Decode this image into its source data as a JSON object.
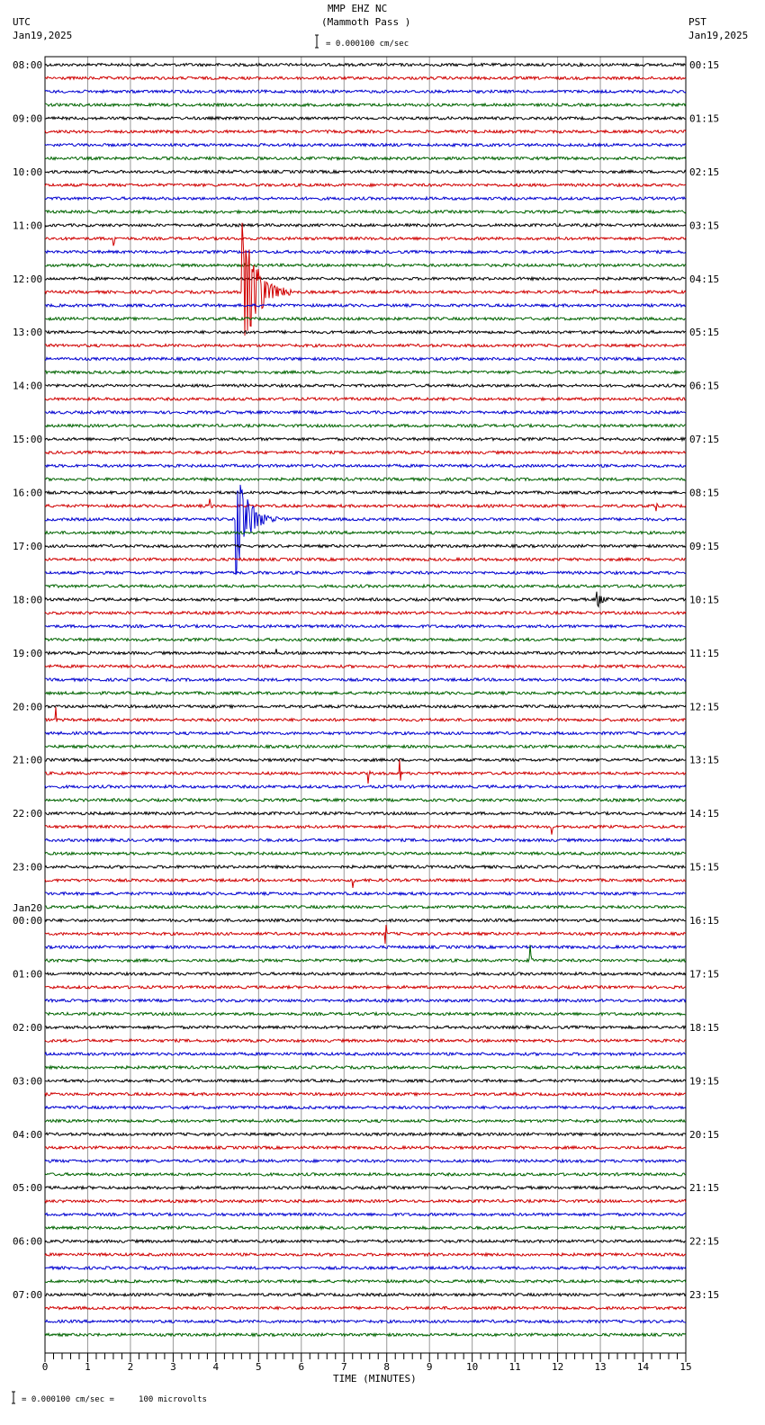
{
  "header": {
    "station": "MMP EHZ NC",
    "location": "(Mammoth Pass )",
    "left_tz": "UTC",
    "left_date": "Jan19,2025",
    "right_tz": "PST",
    "right_date": "Jan19,2025",
    "scale": "= 0.000100 cm/sec"
  },
  "footer": {
    "scale_note": "= 0.000100 cm/sec =     100 microvolts"
  },
  "chart_data": {
    "type": "line",
    "title": "MMP EHZ NC (Mammoth Pass )",
    "xlabel": "TIME (MINUTES)",
    "xlim": [
      0,
      15
    ],
    "x_ticks": [
      "0",
      "1",
      "2",
      "3",
      "4",
      "5",
      "6",
      "7",
      "8",
      "9",
      "10",
      "11",
      "12",
      "13",
      "14",
      "15"
    ],
    "traces_per_hour": 4,
    "trace_colors": [
      "#000000",
      "#d00000",
      "#0000d0",
      "#006400"
    ],
    "left_labels": [
      "08:00",
      "09:00",
      "10:00",
      "11:00",
      "12:00",
      "13:00",
      "14:00",
      "15:00",
      "16:00",
      "17:00",
      "18:00",
      "19:00",
      "20:00",
      "21:00",
      "22:00",
      "23:00",
      "00:00",
      "01:00",
      "02:00",
      "03:00",
      "04:00",
      "05:00",
      "06:00",
      "07:00"
    ],
    "left_date_change": {
      "hour_index": 16,
      "label": "Jan20"
    },
    "right_labels": [
      "00:15",
      "01:15",
      "02:15",
      "03:15",
      "04:15",
      "05:15",
      "06:15",
      "07:15",
      "08:15",
      "09:15",
      "10:15",
      "11:15",
      "12:15",
      "13:15",
      "14:15",
      "15:15",
      "16:15",
      "17:15",
      "18:15",
      "19:15",
      "20:15",
      "21:15",
      "22:15",
      "23:15"
    ],
    "events": [
      {
        "trace": 17,
        "minute": 4.6,
        "amplitude": 95,
        "duration_min": 1.2
      },
      {
        "trace": 34,
        "minute": 4.45,
        "amplitude": 70,
        "duration_min": 1.0
      },
      {
        "trace": 17,
        "minute": 12.85,
        "amplitude": 8,
        "duration_min": 0.15
      },
      {
        "trace": 40,
        "minute": 12.9,
        "amplitude": 20,
        "duration_min": 0.3
      },
      {
        "trace": 13,
        "minute": 1.6,
        "amplitude": 8,
        "duration_min": 0.1
      },
      {
        "trace": 53,
        "minute": 8.3,
        "amplitude": 30,
        "duration_min": 0.05
      },
      {
        "trace": 53,
        "minute": 7.55,
        "amplitude": 22,
        "duration_min": 0.05
      },
      {
        "trace": 57,
        "minute": 11.85,
        "amplitude": 18,
        "duration_min": 0.05
      },
      {
        "trace": 65,
        "minute": 7.95,
        "amplitude": 45,
        "duration_min": 0.05
      },
      {
        "trace": 67,
        "minute": 11.35,
        "amplitude": 28,
        "duration_min": 0.05
      },
      {
        "trace": 33,
        "minute": 14.3,
        "amplitude": 12,
        "duration_min": 0.05
      },
      {
        "trace": 33,
        "minute": 3.85,
        "amplitude": 14,
        "duration_min": 0.05
      },
      {
        "trace": 44,
        "minute": 5.4,
        "amplitude": 16,
        "duration_min": 0.05
      },
      {
        "trace": 49,
        "minute": 0.25,
        "amplitude": 20,
        "duration_min": 0.05
      },
      {
        "trace": 61,
        "minute": 7.2,
        "amplitude": 14,
        "duration_min": 0.05
      }
    ]
  }
}
